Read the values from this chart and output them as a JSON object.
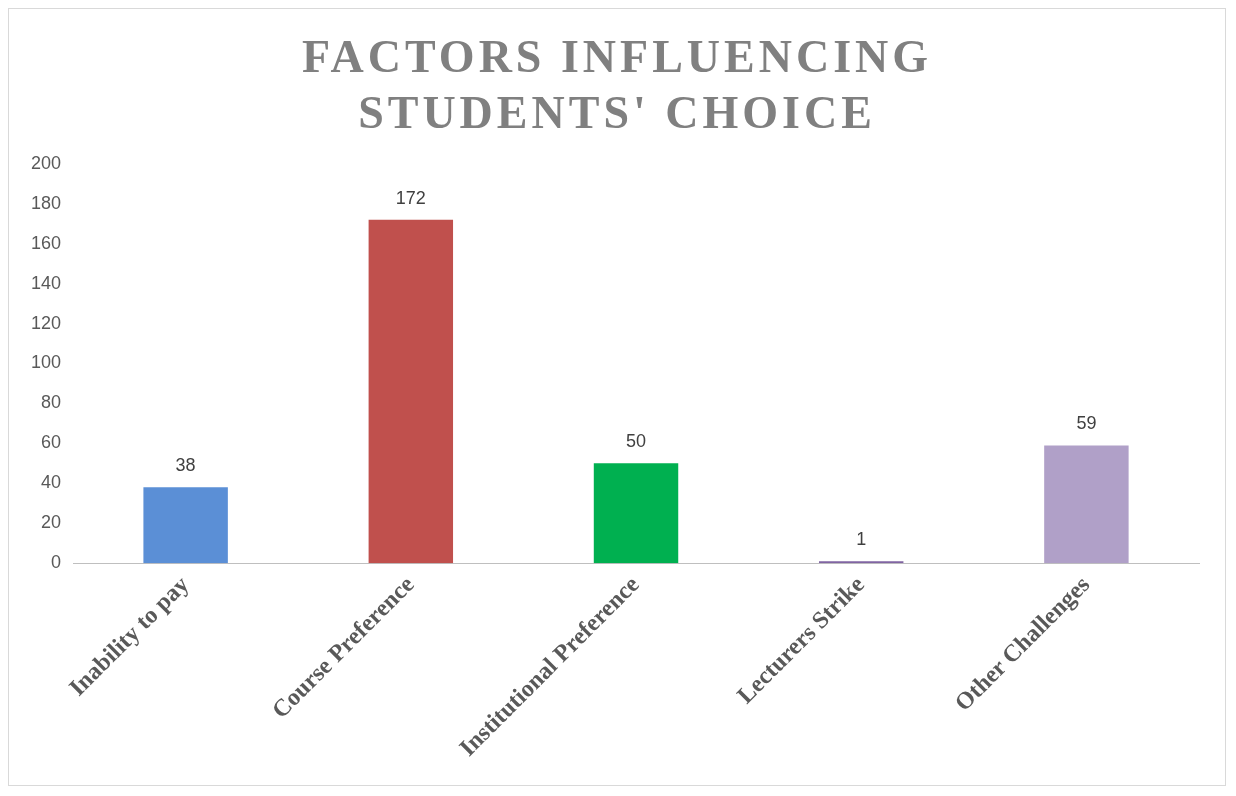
{
  "chart_data": {
    "type": "bar",
    "title": "FACTORS INFLUENCING STUDENTS' CHOICE",
    "categories": [
      "Inability to pay",
      "Course Preference",
      "Institutional Preference",
      "Lecturers Strike",
      "Other Challenges"
    ],
    "values": [
      38,
      172,
      50,
      1,
      59
    ],
    "colors": [
      "#5b8fd6",
      "#c0504d",
      "#00b050",
      "#8064a2",
      "#b0a0c8"
    ],
    "ylim": [
      0,
      200
    ],
    "yticks": [
      0,
      20,
      40,
      60,
      80,
      100,
      120,
      140,
      160,
      180,
      200
    ],
    "grid": false,
    "legend": false,
    "data_labels": true
  }
}
